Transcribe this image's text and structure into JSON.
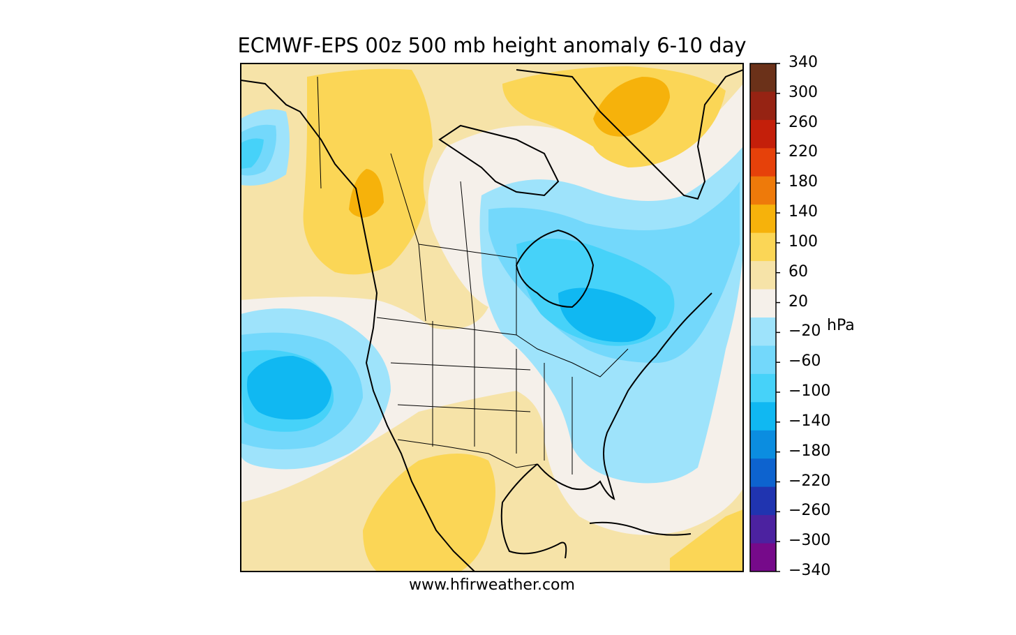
{
  "title": "ECMWF-EPS 00z 500 mb height anomaly 6-10 day",
  "credit": "www.hfirweather.com",
  "colorbar": {
    "units": "hPa",
    "tick_labels": [
      "340",
      "300",
      "260",
      "220",
      "180",
      "140",
      "100",
      "60",
      "20",
      "−20",
      "−60",
      "−100",
      "−140",
      "−180",
      "−220",
      "−260",
      "−300",
      "−340"
    ],
    "colors_top_to_bottom": [
      "#6b3119",
      "#962313",
      "#c41f0a",
      "#e6410a",
      "#ee7a0a",
      "#f6b20b",
      "#fbd656",
      "#f6e3a8",
      "#f5f0ea",
      "#9ee3fb",
      "#73d8fb",
      "#46d2f9",
      "#10b8f2",
      "#0b8de0",
      "#0d63cf",
      "#2034b0",
      "#4c22a0",
      "#760a8a"
    ]
  },
  "palette": {
    "neutral": "#f5f0ea",
    "pos20": "#f6e3a8",
    "pos60": "#fbd656",
    "pos100": "#f6b20b",
    "neg20": "#9ee3fb",
    "neg60": "#73d8fb",
    "neg100": "#46d2f9",
    "neg140": "#10b8f2"
  }
}
